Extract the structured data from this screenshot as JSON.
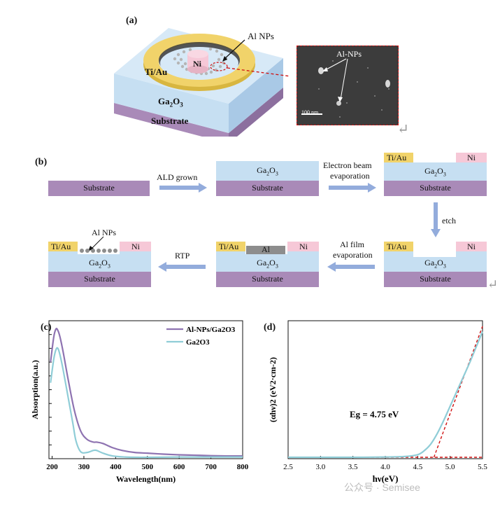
{
  "panel_a": {
    "label": "(a)",
    "electrode_outer": "Ti/Au",
    "electrode_inner": "Ni",
    "layer": "Ga",
    "layer_sub": "2",
    "layer_tail": "O",
    "layer_sub2": "3",
    "substrate": "Substrate",
    "pointer_label": "Al NPs",
    "sem_label": "Al-NPs",
    "scale_bar": "100 nm"
  },
  "panel_b": {
    "label": "(b)",
    "substrate": "Substrate",
    "ga": "Ga",
    "ga_sub": "2",
    "ga_o": "O",
    "ga_sub2": "3",
    "tiau": "Ti/Au",
    "ni": "Ni",
    "al": "Al",
    "al_nps": "Al NPs",
    "step1": "ALD grown",
    "step2_line1": "Electron beam",
    "step2_line2": "evaporation",
    "step3": "etch",
    "step4_line1": "Al film",
    "step4_line2": "evaporation",
    "step5": "RTP"
  },
  "chart_data": [
    {
      "type": "line",
      "panel": "(c)",
      "xlabel": "Wavelength(nm)",
      "ylabel": "Absorption(a.u.)",
      "xlim": [
        190,
        800
      ],
      "xticks": [
        200,
        300,
        400,
        500,
        600,
        700,
        800
      ],
      "legend_position": "top-right",
      "series": [
        {
          "name": "Al-NPs/Ga2O3",
          "color": "#8e73b1",
          "x": [
            195,
            205,
            212,
            218,
            225,
            235,
            250,
            270,
            290,
            310,
            330,
            340,
            360,
            390,
            420,
            460,
            500,
            550,
            600,
            650,
            700,
            750,
            800
          ],
          "y": [
            0.7,
            0.88,
            0.94,
            0.93,
            0.88,
            0.77,
            0.58,
            0.35,
            0.2,
            0.14,
            0.12,
            0.12,
            0.11,
            0.08,
            0.06,
            0.045,
            0.04,
            0.033,
            0.028,
            0.025,
            0.022,
            0.02,
            0.02
          ]
        },
        {
          "name": "Ga2O3",
          "color": "#8fcdd7",
          "x": [
            195,
            205,
            212,
            218,
            225,
            235,
            250,
            265,
            275,
            290,
            310,
            330,
            340,
            360,
            390,
            430,
            470,
            520,
            600,
            700,
            800
          ],
          "y": [
            0.55,
            0.72,
            0.79,
            0.8,
            0.75,
            0.64,
            0.45,
            0.26,
            0.13,
            0.05,
            0.045,
            0.06,
            0.06,
            0.04,
            0.02,
            0.012,
            0.01,
            0.01,
            0.012,
            0.012,
            0.012
          ]
        }
      ]
    },
    {
      "type": "line",
      "panel": "(d)",
      "xlabel": "hν(eV)",
      "ylabel": "(αhν)2 (eV2·cm-2)",
      "xlim": [
        2.5,
        5.5
      ],
      "xticks": [
        2.5,
        3.0,
        3.5,
        4.0,
        4.5,
        5.0,
        5.5
      ],
      "annotation": "Eg = 4.75 eV",
      "series": [
        {
          "name": "",
          "color": "#8fcdd7",
          "x": [
            2.5,
            3.0,
            3.5,
            4.0,
            4.3,
            4.5,
            4.6,
            4.7,
            4.8,
            4.9,
            5.0,
            5.1,
            5.2,
            5.3,
            5.4,
            5.5
          ],
          "y": [
            0.0,
            0.0,
            0.0,
            0.002,
            0.006,
            0.02,
            0.05,
            0.1,
            0.18,
            0.28,
            0.39,
            0.5,
            0.61,
            0.72,
            0.84,
            0.96
          ]
        }
      ],
      "fits": [
        {
          "color": "#d01010",
          "x": [
            2.5,
            5.5
          ],
          "y": [
            0.0,
            0.0
          ]
        },
        {
          "color": "#d01010",
          "x": [
            4.75,
            5.5
          ],
          "y": [
            0.0,
            1.0
          ]
        }
      ]
    }
  ],
  "watermark": "公众号 · Semisee",
  "colors": {
    "substrate": "#a98ab8",
    "ga2o3": "#c6dff2",
    "tiau": "#f1d36a",
    "ni": "#f6c8d7",
    "al": "#8d8d8d",
    "arrow": "#93acdc",
    "red": "#d01010"
  }
}
